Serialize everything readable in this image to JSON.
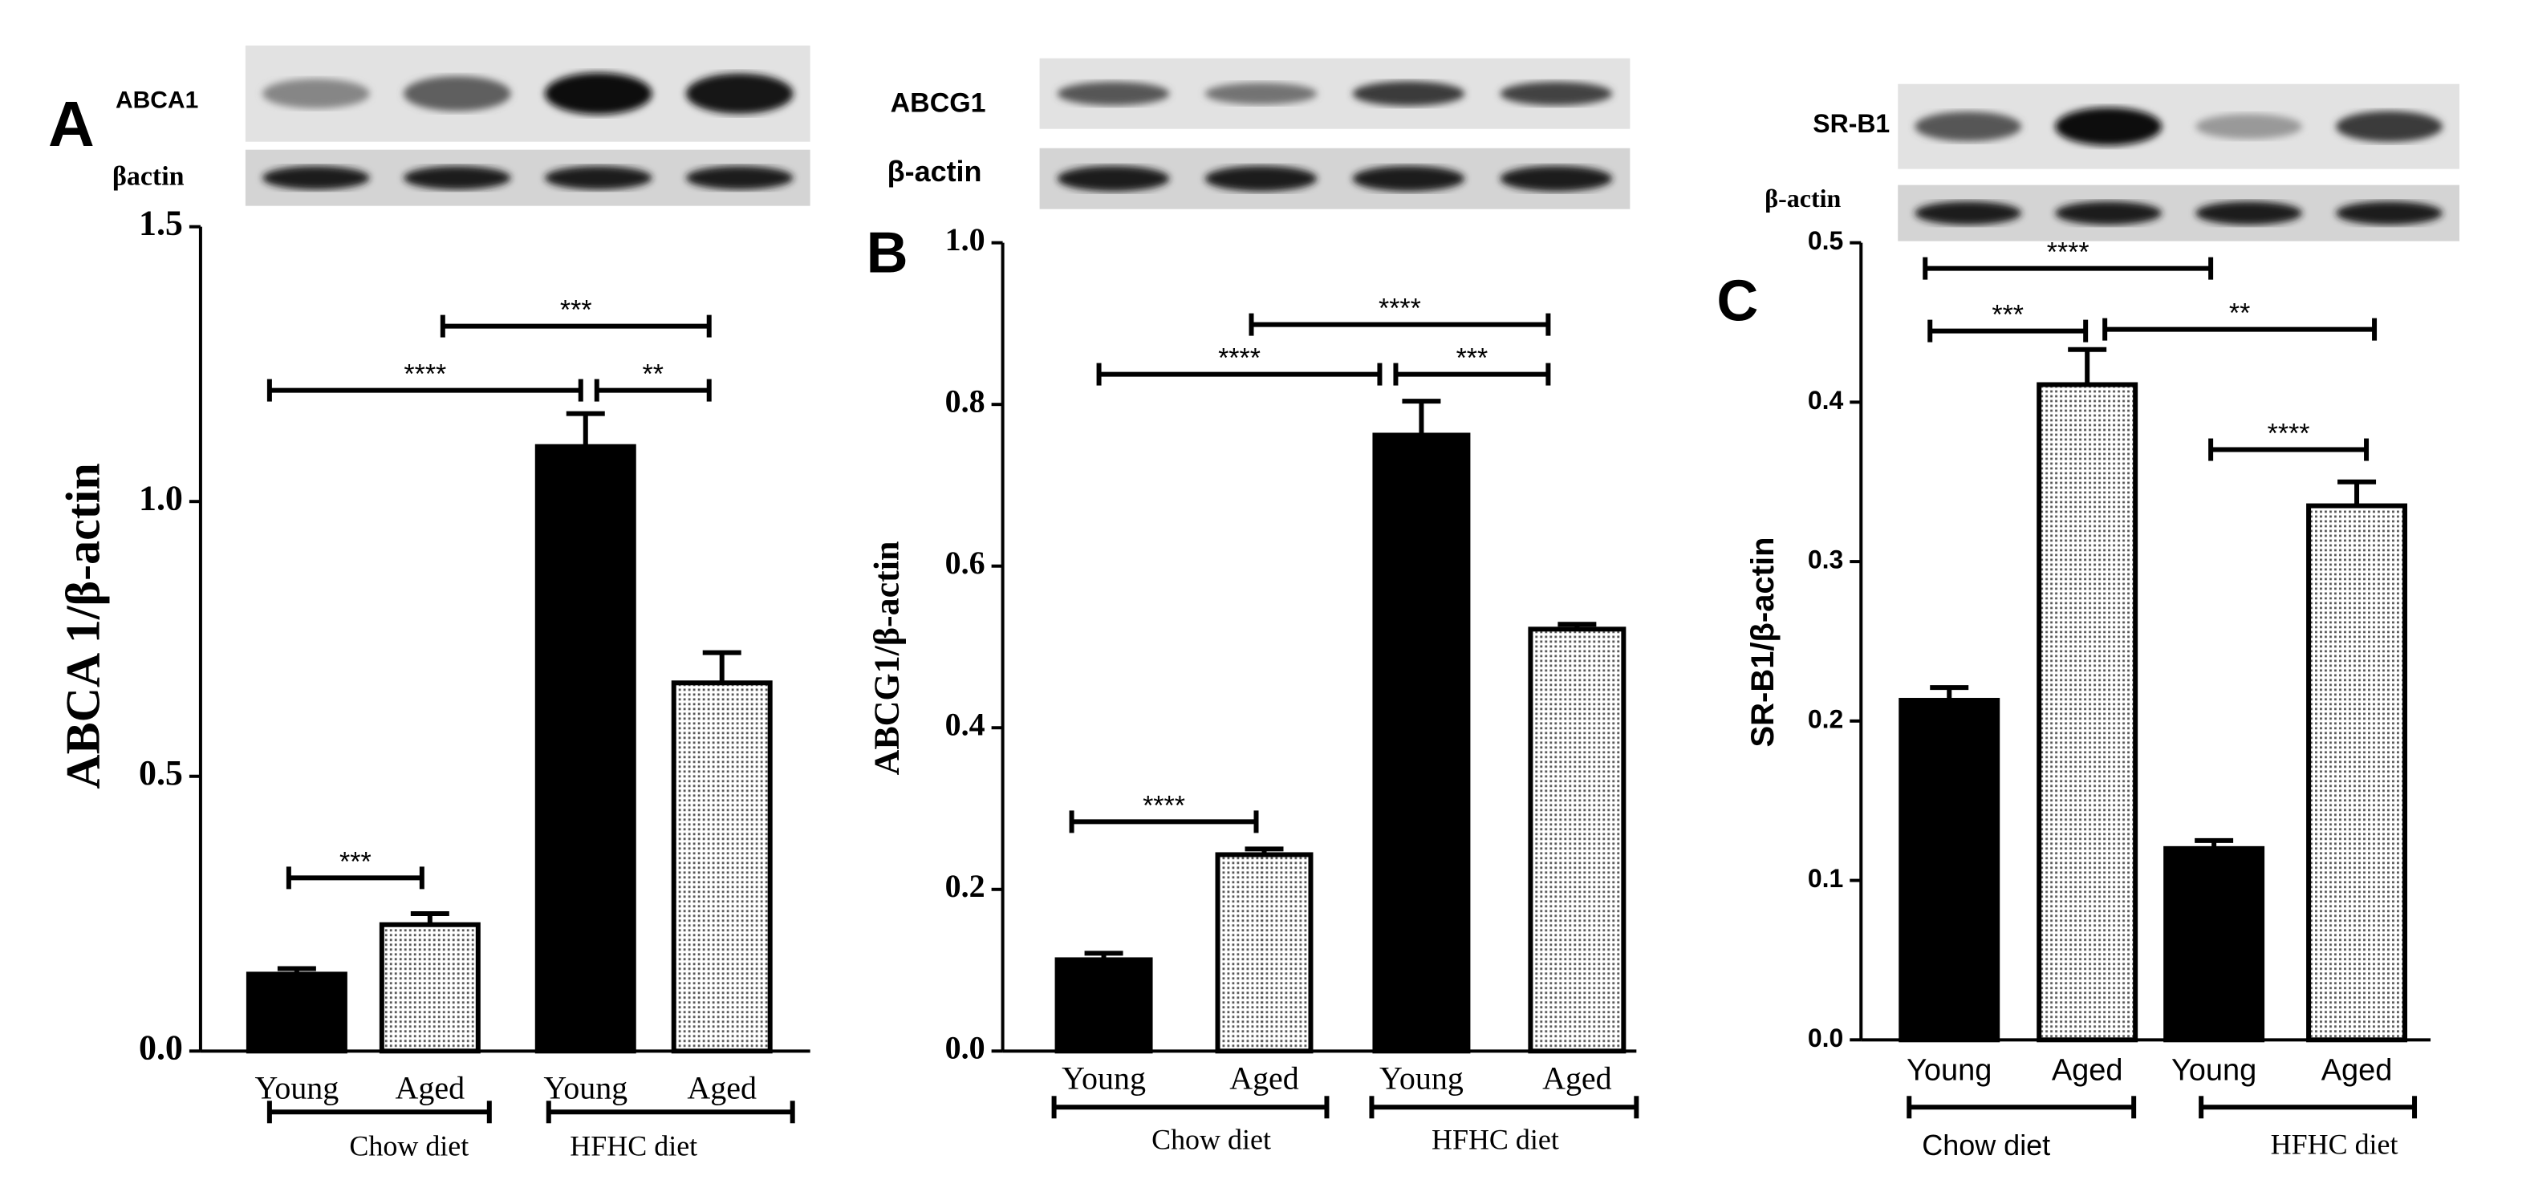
{
  "chart_data": [
    {
      "type": "bar",
      "panel": "A",
      "y_label": "ABCA 1/β-actin",
      "blots": [
        "ABCA1",
        "βactin"
      ],
      "categories": [
        "Young",
        "Aged",
        "Young",
        "Aged"
      ],
      "groups": [
        "Chow diet",
        "HFHC diet"
      ],
      "values": [
        0.14,
        0.23,
        1.1,
        0.67
      ],
      "errors": [
        0.01,
        0.02,
        0.06,
        0.055
      ],
      "colors": [
        "#000000",
        "#d0d0d0",
        "#000000",
        "#d0d0d0"
      ],
      "ylim": [
        0,
        1.5
      ],
      "yticks": [
        {
          "value": 0,
          "label": "0.0"
        },
        0.5,
        {
          "value": 1,
          "label": "1.0"
        },
        1.5
      ],
      "annotations": [
        "***",
        "****",
        "**",
        "***"
      ]
    },
    {
      "type": "bar",
      "panel": "B",
      "y_label": "ABCG1/β-actin",
      "blots": [
        "ABCG1",
        "β-actin"
      ],
      "categories": [
        "Young",
        "Aged",
        "Young",
        "Aged"
      ],
      "groups": [
        "Chow diet",
        "HFHC diet"
      ],
      "values": [
        0.113,
        0.243,
        0.762,
        0.522
      ],
      "errors": [
        0.008,
        0.007,
        0.042,
        0.006
      ],
      "colors": [
        "#000000",
        "#d0d0d0",
        "#000000",
        "#d0d0d0"
      ],
      "ylim": [
        0,
        1
      ],
      "yticks": [
        {
          "value": 0,
          "label": "0.0"
        },
        0.2,
        0.4,
        0.6,
        0.8,
        {
          "value": 1,
          "label": "1.0"
        }
      ],
      "annotations": [
        "****",
        "****",
        "***",
        "****"
      ]
    },
    {
      "type": "bar",
      "panel": "C",
      "y_label": "SR-B1/β-actin",
      "blots": [
        "SR-B1",
        "β-actin"
      ],
      "categories": [
        "Young",
        "Aged",
        "Young",
        "Aged"
      ],
      "groups": [
        "Chow diet",
        "HFHC diet"
      ],
      "values": [
        0.213,
        0.411,
        0.12,
        0.335
      ],
      "errors": [
        0.008,
        0.022,
        0.005,
        0.015
      ],
      "colors": [
        "#000000",
        "#d0d0d0",
        "#000000",
        "#d0d0d0"
      ],
      "ylim": [
        0,
        0.5
      ],
      "yticks": [
        {
          "value": 0,
          "label": "0.0"
        },
        0.1,
        0.2,
        0.3,
        0.4,
        0.5
      ],
      "annotations": [
        "****",
        "***",
        "**",
        "****"
      ]
    }
  ]
}
